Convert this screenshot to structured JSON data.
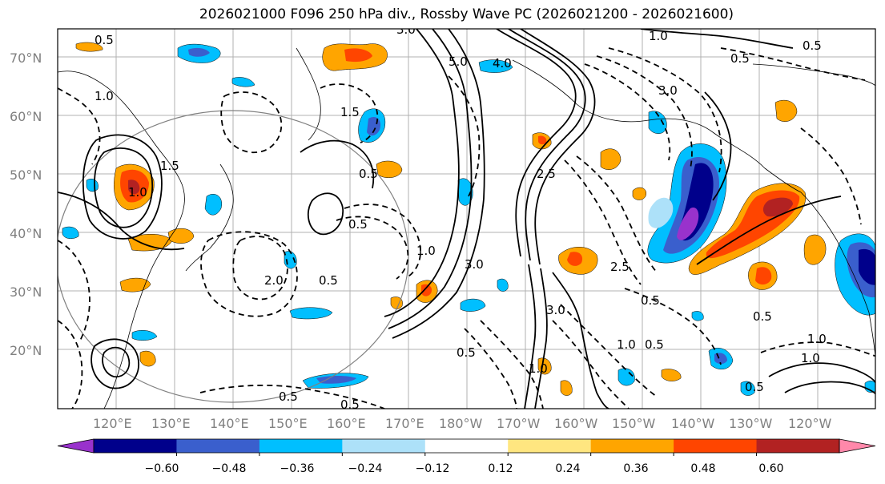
{
  "title": "2026021000 F096 250 hPa div., Rossby Wave PC (2026021200 - 2026021600)",
  "lat_labels": [
    "70°N",
    "60°N",
    "50°N",
    "40°N",
    "30°N",
    "20°N"
  ],
  "lon_labels": [
    "120°E",
    "130°E",
    "140°E",
    "150°E",
    "160°E",
    "170°E",
    "180°W",
    "170°W",
    "160°W",
    "150°W",
    "140°W",
    "130°W",
    "120°W"
  ],
  "colorbar": {
    "ticks": [
      "−0.60",
      "−0.48",
      "−0.36",
      "−0.24",
      "−0.12",
      "0.12",
      "0.24",
      "0.36",
      "0.48",
      "0.60"
    ],
    "colors": [
      "#9932CC",
      "#00008B",
      "#3A5FCD",
      "#00BFFF",
      "#ADE1F9",
      "#FFFFFF",
      "#FFE680",
      "#FFA500",
      "#FF4500",
      "#B22222",
      "#FF88AA"
    ]
  },
  "contour_labels": [
    "0.5",
    "1.0",
    "0.5",
    "3.0",
    "1.0",
    "0.5",
    "1.5",
    "2.5",
    "0.5",
    "1.0",
    "0.5",
    "1.0",
    "3.0",
    "2.5",
    "0.5",
    "0.5",
    "3.0",
    "1.0",
    "2.0",
    "0.5",
    "0.5",
    "1.0",
    "0.5",
    "1.0",
    "0.5",
    "0.5",
    "0.5",
    "1.0",
    "4.0",
    "5.0",
    "3.0",
    "1.5"
  ]
}
